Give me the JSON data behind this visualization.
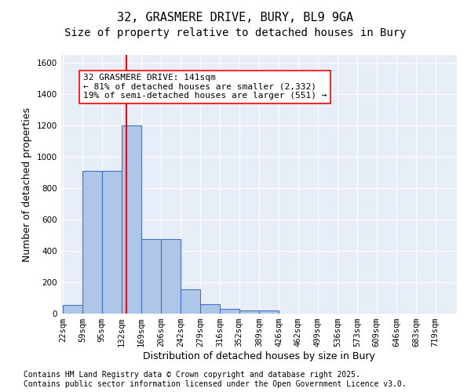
{
  "title_line1": "32, GRASMERE DRIVE, BURY, BL9 9GA",
  "title_line2": "Size of property relative to detached houses in Bury",
  "xlabel": "Distribution of detached houses by size in Bury",
  "ylabel": "Number of detached properties",
  "bar_edges": [
    22,
    59,
    95,
    132,
    169,
    206,
    242,
    279,
    316,
    352,
    389,
    426,
    462,
    499,
    536,
    573,
    609,
    646,
    683,
    719,
    756
  ],
  "bar_heights": [
    55,
    910,
    910,
    1200,
    475,
    475,
    155,
    60,
    30,
    20,
    20,
    0,
    0,
    0,
    0,
    0,
    0,
    0,
    0,
    0
  ],
  "bar_color": "#aec6e8",
  "bar_edgecolor": "#4472c4",
  "bar_linewidth": 0.8,
  "vline_x": 141,
  "vline_color": "red",
  "vline_linewidth": 1.5,
  "annotation_box_text": "32 GRASMERE DRIVE: 141sqm\n← 81% of detached houses are smaller (2,332)\n19% of semi-detached houses are larger (551) →",
  "annotation_fontsize": 8,
  "annotation_box_color": "white",
  "annotation_box_edgecolor": "red",
  "ylim": [
    0,
    1650
  ],
  "yticks": [
    0,
    200,
    400,
    600,
    800,
    1000,
    1200,
    1400,
    1600
  ],
  "background_color": "#e8eef8",
  "grid_color": "white",
  "title_fontsize": 11,
  "subtitle_fontsize": 10,
  "axis_label_fontsize": 9,
  "tick_label_fontsize": 7.5,
  "footer_text": "Contains HM Land Registry data © Crown copyright and database right 2025.\nContains public sector information licensed under the Open Government Licence v3.0.",
  "footer_fontsize": 7
}
